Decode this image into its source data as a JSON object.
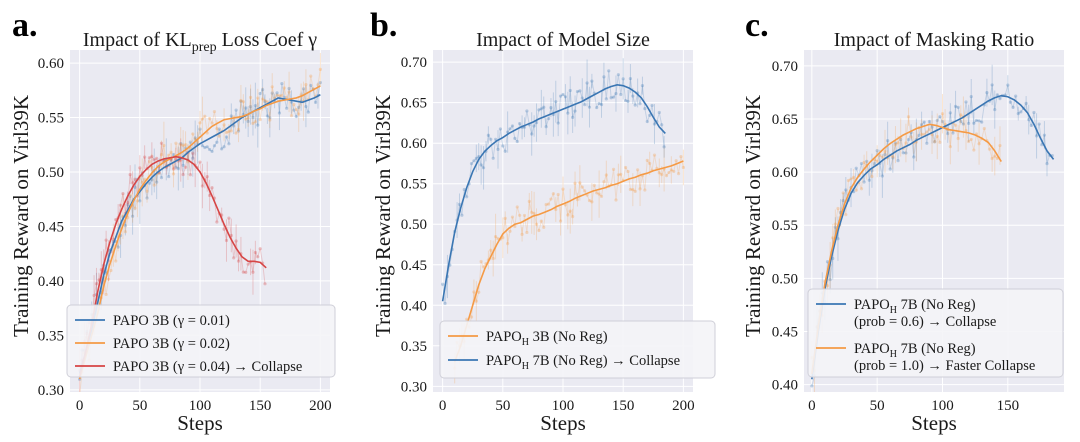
{
  "chart_data": [
    {
      "type": "line",
      "panel_letter": "a.",
      "title_parts": [
        "Impact of KL",
        "prep",
        " Loss Coef γ"
      ],
      "xlabel": "Steps",
      "ylabel": "Training Reward on Virl39K",
      "xlim": [
        -8,
        208
      ],
      "ylim": [
        0.298,
        0.612
      ],
      "xticks": [
        0,
        50,
        100,
        150,
        200
      ],
      "xtick_labels": [
        "0",
        "50",
        "100",
        "150",
        "200"
      ],
      "yticks": [
        0.3,
        0.35,
        0.4,
        0.45,
        0.5,
        0.55,
        0.6
      ],
      "ytick_labels": [
        "0.30",
        "0.35",
        "0.40",
        "0.45",
        "0.50",
        "0.55",
        "0.60"
      ],
      "grid": true,
      "legend_position": "lower-left",
      "series": [
        {
          "label": "PAPO 3B (γ = 0.01)",
          "color": "#3a76b3",
          "x": [
            0,
            5,
            10,
            15,
            20,
            25,
            30,
            35,
            40,
            45,
            50,
            55,
            60,
            65,
            70,
            75,
            80,
            85,
            90,
            95,
            100,
            105,
            110,
            115,
            120,
            125,
            130,
            135,
            140,
            145,
            150,
            155,
            160,
            165,
            170,
            175,
            180,
            185,
            190,
            195,
            200
          ],
          "y": [
            0.315,
            0.335,
            0.355,
            0.38,
            0.405,
            0.425,
            0.44,
            0.455,
            0.465,
            0.475,
            0.482,
            0.489,
            0.495,
            0.5,
            0.504,
            0.507,
            0.51,
            0.513,
            0.518,
            0.522,
            0.526,
            0.529,
            0.532,
            0.535,
            0.538,
            0.542,
            0.546,
            0.55,
            0.553,
            0.556,
            0.559,
            0.562,
            0.565,
            0.568,
            0.567,
            0.566,
            0.565,
            0.564,
            0.566,
            0.568,
            0.571
          ]
        },
        {
          "label": "PAPO 3B (γ = 0.02)",
          "color": "#f59a45",
          "x": [
            0,
            5,
            10,
            15,
            20,
            25,
            30,
            35,
            40,
            45,
            50,
            55,
            60,
            65,
            70,
            75,
            80,
            85,
            90,
            95,
            100,
            105,
            110,
            115,
            120,
            125,
            130,
            135,
            140,
            145,
            150,
            155,
            160,
            165,
            170,
            175,
            180,
            185,
            190,
            195,
            200
          ],
          "y": [
            0.31,
            0.33,
            0.35,
            0.37,
            0.395,
            0.415,
            0.432,
            0.448,
            0.462,
            0.474,
            0.484,
            0.492,
            0.499,
            0.505,
            0.509,
            0.512,
            0.515,
            0.518,
            0.522,
            0.527,
            0.532,
            0.537,
            0.542,
            0.545,
            0.548,
            0.549,
            0.55,
            0.551,
            0.553,
            0.556,
            0.558,
            0.561,
            0.563,
            0.565,
            0.566,
            0.567,
            0.568,
            0.57,
            0.573,
            0.576,
            0.579
          ]
        },
        {
          "label": "PAPO 3B (γ = 0.04) → Collapse",
          "color": "#d64545",
          "x": [
            0,
            5,
            10,
            15,
            20,
            25,
            30,
            35,
            40,
            45,
            50,
            55,
            60,
            65,
            70,
            75,
            80,
            85,
            90,
            95,
            100,
            105,
            110,
            115,
            120,
            125,
            130,
            135,
            140,
            145,
            150,
            155
          ],
          "y": [
            0.312,
            0.335,
            0.36,
            0.39,
            0.415,
            0.435,
            0.452,
            0.466,
            0.478,
            0.488,
            0.496,
            0.502,
            0.507,
            0.51,
            0.512,
            0.513,
            0.514,
            0.513,
            0.511,
            0.507,
            0.5,
            0.49,
            0.478,
            0.465,
            0.452,
            0.44,
            0.43,
            0.422,
            0.418,
            0.418,
            0.417,
            0.412
          ]
        }
      ]
    },
    {
      "type": "line",
      "panel_letter": "b.",
      "title_parts": [
        "Impact of Model Size"
      ],
      "xlabel": "Steps",
      "ylabel": "Training Reward on Virl39K",
      "xlim": [
        -8,
        208
      ],
      "ylim": [
        0.293,
        0.715
      ],
      "xticks": [
        0,
        50,
        100,
        150,
        200
      ],
      "xtick_labels": [
        "0",
        "50",
        "100",
        "150",
        "200"
      ],
      "yticks": [
        0.3,
        0.35,
        0.4,
        0.45,
        0.5,
        0.55,
        0.6,
        0.65,
        0.7
      ],
      "ytick_labels": [
        "0.30",
        "0.35",
        "0.40",
        "0.45",
        "0.50",
        "0.55",
        "0.60",
        "0.65",
        "0.70"
      ],
      "grid": true,
      "legend_position": "lower-right",
      "series": [
        {
          "label": "PAPO",
          "label_sub": "H",
          "label_rest": " 3B (No Reg)",
          "color": "#f59a45",
          "x": [
            10,
            15,
            20,
            25,
            30,
            35,
            40,
            45,
            50,
            55,
            60,
            65,
            70,
            75,
            80,
            85,
            90,
            95,
            100,
            105,
            110,
            115,
            120,
            125,
            130,
            135,
            140,
            145,
            150,
            155,
            160,
            165,
            170,
            175,
            180,
            185,
            190,
            195,
            200
          ],
          "y": [
            0.33,
            0.35,
            0.375,
            0.4,
            0.425,
            0.445,
            0.46,
            0.475,
            0.488,
            0.495,
            0.5,
            0.502,
            0.506,
            0.51,
            0.512,
            0.515,
            0.518,
            0.522,
            0.525,
            0.528,
            0.532,
            0.535,
            0.538,
            0.541,
            0.543,
            0.545,
            0.548,
            0.55,
            0.553,
            0.556,
            0.558,
            0.561,
            0.563,
            0.566,
            0.568,
            0.57,
            0.572,
            0.575,
            0.578
          ]
        },
        {
          "label": "PAPO",
          "label_sub": "H",
          "label_rest": " 7B (No Reg) → Collapse",
          "color": "#3a76b3",
          "x": [
            0,
            5,
            10,
            15,
            20,
            25,
            30,
            35,
            40,
            45,
            50,
            55,
            60,
            65,
            70,
            75,
            80,
            85,
            90,
            95,
            100,
            105,
            110,
            115,
            120,
            125,
            130,
            135,
            140,
            145,
            150,
            155,
            160,
            165,
            170,
            175,
            180,
            185
          ],
          "y": [
            0.405,
            0.45,
            0.49,
            0.52,
            0.545,
            0.565,
            0.58,
            0.59,
            0.597,
            0.603,
            0.607,
            0.612,
            0.616,
            0.62,
            0.623,
            0.626,
            0.63,
            0.633,
            0.636,
            0.639,
            0.642,
            0.645,
            0.648,
            0.651,
            0.655,
            0.659,
            0.663,
            0.667,
            0.67,
            0.672,
            0.671,
            0.668,
            0.663,
            0.656,
            0.645,
            0.632,
            0.62,
            0.612
          ]
        }
      ]
    },
    {
      "type": "line",
      "panel_letter": "c.",
      "title_parts": [
        "Impact of Masking Ratio"
      ],
      "xlabel": "Steps",
      "ylabel": "Training Reward on Virl39K",
      "xlim": [
        -6,
        193
      ],
      "ylim": [
        0.393,
        0.715
      ],
      "xticks": [
        0,
        50,
        100,
        150
      ],
      "xtick_labels": [
        "0",
        "50",
        "100",
        "150"
      ],
      "yticks": [
        0.4,
        0.45,
        0.5,
        0.55,
        0.6,
        0.65,
        0.7
      ],
      "ytick_labels": [
        "0.40",
        "0.45",
        "0.50",
        "0.55",
        "0.60",
        "0.65",
        "0.70"
      ],
      "grid": true,
      "legend_position": "lower-right",
      "series": [
        {
          "label": "PAPO",
          "label_sub": "H",
          "label_rest": " 7B (No Reg)",
          "label_line2": "(prob = 0.6) → Collapse",
          "color": "#3a76b3",
          "x": [
            0,
            5,
            10,
            15,
            20,
            25,
            30,
            35,
            40,
            45,
            50,
            55,
            60,
            65,
            70,
            75,
            80,
            85,
            90,
            95,
            100,
            105,
            110,
            115,
            120,
            125,
            130,
            135,
            140,
            145,
            150,
            155,
            160,
            165,
            170,
            175,
            180,
            185
          ],
          "y": [
            0.405,
            0.45,
            0.49,
            0.52,
            0.545,
            0.565,
            0.58,
            0.59,
            0.597,
            0.603,
            0.607,
            0.612,
            0.616,
            0.62,
            0.623,
            0.626,
            0.63,
            0.633,
            0.636,
            0.639,
            0.642,
            0.645,
            0.648,
            0.651,
            0.655,
            0.659,
            0.663,
            0.667,
            0.67,
            0.672,
            0.671,
            0.668,
            0.663,
            0.656,
            0.645,
            0.632,
            0.62,
            0.612
          ]
        },
        {
          "label": "PAPO",
          "label_sub": "H",
          "label_rest": " 7B (No Reg)",
          "label_line2": "(prob = 1.0) → Faster Collapse",
          "color": "#f59a45",
          "x": [
            0,
            5,
            10,
            15,
            20,
            25,
            30,
            35,
            40,
            45,
            50,
            55,
            60,
            65,
            70,
            75,
            80,
            85,
            90,
            95,
            100,
            105,
            110,
            115,
            120,
            125,
            130,
            135,
            140,
            145
          ],
          "y": [
            0.41,
            0.455,
            0.495,
            0.525,
            0.55,
            0.57,
            0.585,
            0.595,
            0.603,
            0.61,
            0.616,
            0.622,
            0.627,
            0.631,
            0.635,
            0.638,
            0.641,
            0.643,
            0.645,
            0.644,
            0.642,
            0.64,
            0.639,
            0.638,
            0.637,
            0.635,
            0.632,
            0.628,
            0.62,
            0.61
          ]
        }
      ]
    }
  ]
}
